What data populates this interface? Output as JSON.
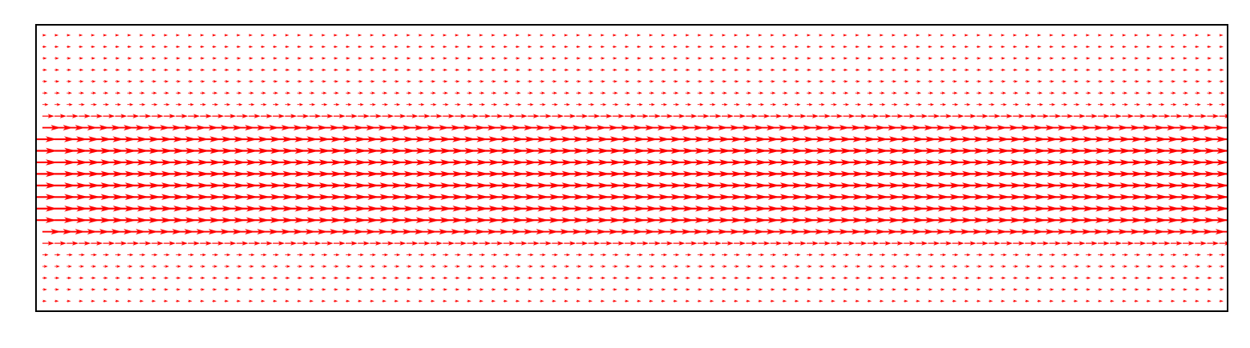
{
  "chart_data": {
    "type": "quiver",
    "title": "",
    "xlabel": "",
    "ylabel": "",
    "axes_visible": false,
    "grid": false,
    "legend": "none",
    "frame": true,
    "direction": "positive-x",
    "columns": 99,
    "rows": 24,
    "row_magnitudes": [
      0.19,
      0.2,
      0.21,
      0.22,
      0.23,
      0.25,
      0.28,
      0.55,
      0.86,
      0.98,
      1.0,
      1.0,
      1.0,
      1.0,
      1.0,
      1.0,
      0.98,
      0.86,
      0.55,
      0.28,
      0.25,
      0.23,
      0.22,
      0.2
    ],
    "colors": {
      "arrow": "#ff0000",
      "frame": "#000000",
      "background": "#ffffff"
    }
  }
}
